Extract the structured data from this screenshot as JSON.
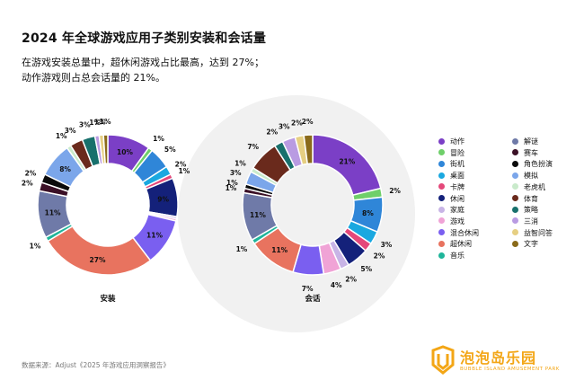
{
  "title": "2024 年全球游戏应用子类别安装和会话量",
  "subtitle_lines": [
    "在游戏安装总量中，超休闲游戏占比最高，达到 27%；",
    "动作游戏则占总会话量的 21%。"
  ],
  "source": "数据来源：Adjust《2025 年游戏应用洞察报告》",
  "brand": {
    "name": "泡泡岛乐园",
    "tagline": "BUBBLE ISLAND AMUSEMENT PARK"
  },
  "colors": {
    "动作": "#7b3fc6",
    "冒险": "#6fcf6a",
    "街机": "#2f86d8",
    "桌面": "#1aa8e0",
    "卡牌": "#e4487a",
    "休闲": "#14217a",
    "家庭": "#c8b4e6",
    "游戏": "#f0a3d6",
    "混合休闲": "#7a5ff0",
    "超休闲": "#e8735f",
    "音乐": "#1fb59a",
    "解谜": "#6f7aa8",
    "赛车": "#3b1026",
    "角色扮演": "#0b0b0b",
    "模拟": "#7ba6ea",
    "老虎机": "#c9eacb",
    "体育": "#6a2a1c",
    "策略": "#18706c",
    "三消": "#b99be2",
    "益智问答": "#e6cf82",
    "文字": "#8a6a1a"
  },
  "legend": {
    "col1": [
      "动作",
      "冒险",
      "街机",
      "桌面",
      "卡牌",
      "休闲",
      "家庭",
      "游戏",
      "混合休闲",
      "超休闲",
      "音乐"
    ],
    "col2": [
      "解谜",
      "赛车",
      "角色扮演",
      "模拟",
      "老虎机",
      "体育",
      "策略",
      "三消",
      "益智问答",
      "文字"
    ]
  },
  "chart_data": [
    {
      "type": "pie",
      "title": "安装",
      "categories": [
        "动作",
        "冒险",
        "街机",
        "桌面",
        "卡牌",
        "休闲",
        "家庭",
        "游戏",
        "混合休闲",
        "超休闲",
        "音乐",
        "解谜",
        "赛车",
        "角色扮演",
        "模拟",
        "老虎机",
        "体育",
        "策略",
        "三消",
        "益智问答",
        "文字"
      ],
      "values": [
        10,
        1,
        5,
        2,
        1,
        9,
        0.5,
        0.5,
        11,
        27,
        1,
        11,
        2,
        2,
        8,
        1,
        3,
        3,
        1,
        1,
        1
      ],
      "labels": [
        "10%",
        "1%",
        "5%",
        "2%",
        "1%",
        "9%",
        "",
        "",
        "11%",
        "27%",
        "1%",
        "11%",
        "2%",
        "2%",
        "8%",
        "1%",
        "3%",
        "3%",
        "1%",
        "1%",
        "1%"
      ]
    },
    {
      "type": "pie",
      "title": "会话",
      "categories": [
        "动作",
        "冒险",
        "街机",
        "桌面",
        "卡牌",
        "休闲",
        "家庭",
        "游戏",
        "混合休闲",
        "超休闲",
        "音乐",
        "解谜",
        "赛车",
        "角色扮演",
        "模拟",
        "老虎机",
        "体育",
        "策略",
        "三消",
        "益智问答",
        "文字"
      ],
      "values": [
        21,
        2,
        8,
        3,
        2,
        5,
        2,
        4,
        7,
        11,
        1,
        11,
        1,
        1,
        3,
        1,
        7,
        2,
        3,
        2,
        2
      ],
      "labels": [
        "21%",
        "2%",
        "8%",
        "3%",
        "2%",
        "5%",
        "2%",
        "4%",
        "7%",
        "11%",
        "1%",
        "11%",
        "1%",
        "1%",
        "3%",
        "1%",
        "7%",
        "2%",
        "3%",
        "2%",
        "2%"
      ]
    }
  ]
}
